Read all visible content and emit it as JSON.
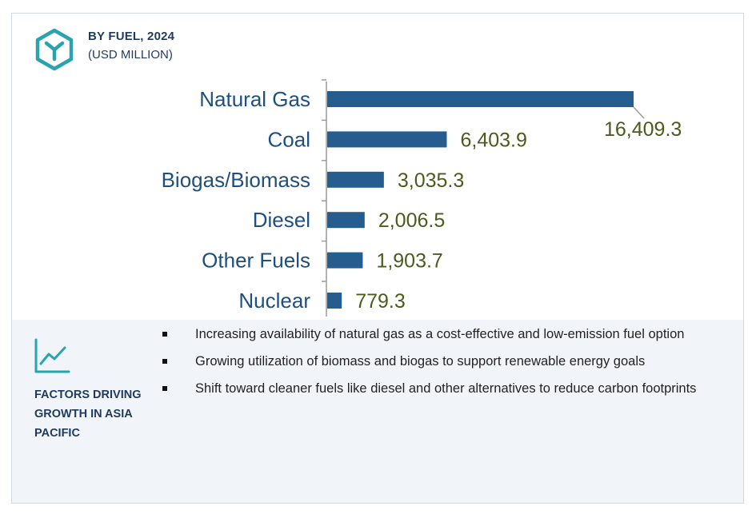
{
  "header": {
    "title": "BY FUEL, 2024",
    "subtitle": "(USD MILLION)",
    "icon": "hexagon-y-logo-icon",
    "accent_color": "#2aa3b0"
  },
  "chart_data": {
    "type": "bar",
    "orientation": "horizontal",
    "title": "BY FUEL, 2024",
    "subtitle": "(USD MILLION)",
    "categories": [
      "Natural Gas",
      "Coal",
      "Biogas/Biomass",
      "Diesel",
      "Other Fuels",
      "Nuclear"
    ],
    "values": [
      16409.3,
      6403.9,
      3035.3,
      2006.5,
      1903.7,
      779.3
    ],
    "value_labels": [
      "16,409.3",
      "6,403.9",
      "3,035.3",
      "2,006.5",
      "1,903.7",
      "779.3"
    ],
    "xlim": [
      0,
      16409.3
    ],
    "grid": false,
    "bar_color": "#255d8f",
    "category_color": "#1f4f7f",
    "value_color": "#4d5a1d"
  },
  "factors": {
    "icon": "trend-line-chart-icon",
    "title": "FACTORS DRIVING GROWTH IN ASIA PACIFIC",
    "items": [
      "Increasing availability of natural gas as a cost-effective and low-emission fuel option",
      "Growing utilization of biomass and biogas to support renewable energy goals",
      "Shift toward cleaner fuels like diesel and other alternatives to reduce carbon footprints"
    ]
  }
}
